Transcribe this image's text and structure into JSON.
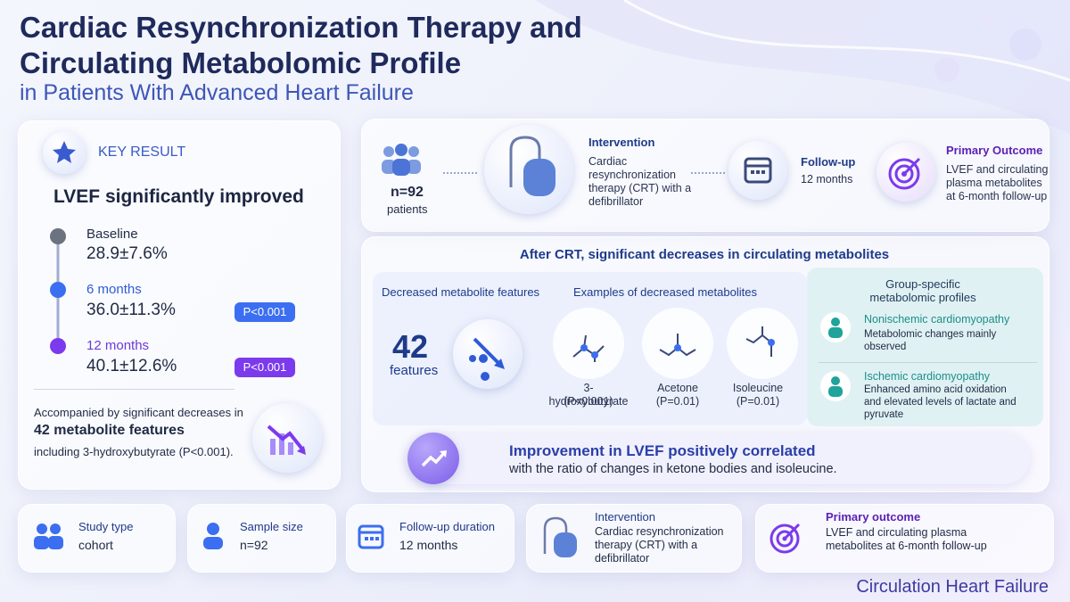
{
  "header": {
    "title_line1": "Cardiac Resynchronization Therapy and",
    "title_line2": "Circulating Metabolomic Profile",
    "subtitle": "in Patients With Advanced Heart Failure"
  },
  "key_result": {
    "label": "KEY RESULT",
    "headline": "LVEF significantly improved",
    "timepoints": [
      {
        "label": "Baseline",
        "value": "28.9±7.6%"
      },
      {
        "label": "6 months",
        "value": "36.0±11.3%",
        "p": "P<0.001"
      },
      {
        "label": "12 months",
        "value": "40.1±12.6%",
        "p": "P<0.001"
      }
    ],
    "note_pre": "Accompanied by significant decreases in",
    "note_bold": "42 metabolite features",
    "note_post": "including 3-hydroxybutyrate (P<0.001)."
  },
  "flow": {
    "population": {
      "value": "n=92",
      "label": "patients"
    },
    "intervention": {
      "title": "Intervention",
      "text": "Cardiac resynchronization therapy (CRT) with a defibrillator"
    },
    "followup": {
      "title": "Follow-up",
      "text": "12 months"
    },
    "outcome": {
      "title": "Primary Outcome",
      "text": "LVEF and circulating plasma metabolites at 6-month follow-up"
    }
  },
  "metabolites": {
    "title": "After CRT, significant decreases in circulating metabolites",
    "decreased": {
      "title": "Decreased metabolite features",
      "value": "42",
      "unit": "features"
    },
    "examples": {
      "title": "Examples of decreased metabolites",
      "items": [
        {
          "name": "3-hydroxybutyrate",
          "p": "(P<0.001)"
        },
        {
          "name": "Acetone",
          "p": "(P=0.01)"
        },
        {
          "name": "Isoleucine",
          "p": "(P=0.01)"
        }
      ]
    },
    "groups": {
      "title": "Group-specific metabolomic profiles",
      "items": [
        {
          "name": "Nonischemic cardiomyopathy",
          "text": "Metabolomic changes mainly observed"
        },
        {
          "name": "Ischemic cardiomyopathy",
          "text": "Enhanced amino acid oxidation and elevated levels of lactate and pyruvate"
        }
      ]
    }
  },
  "correlation": {
    "bold": "Improvement in LVEF positively correlated",
    "text": "with the ratio of changes in ketone bodies and isoleucine."
  },
  "footer_cards": [
    {
      "title": "Study type",
      "text": "cohort"
    },
    {
      "title": "Sample size",
      "text": "n=92"
    },
    {
      "title": "Follow-up duration",
      "text": "12 months"
    },
    {
      "title": "Intervention",
      "text": "Cardiac resynchronization therapy (CRT) with a defibrillator"
    },
    {
      "title": "Primary outcome",
      "text": "LVEF and circulating plasma metabolites at 6-month follow-up"
    }
  ],
  "journal": "Circulation Heart Failure"
}
